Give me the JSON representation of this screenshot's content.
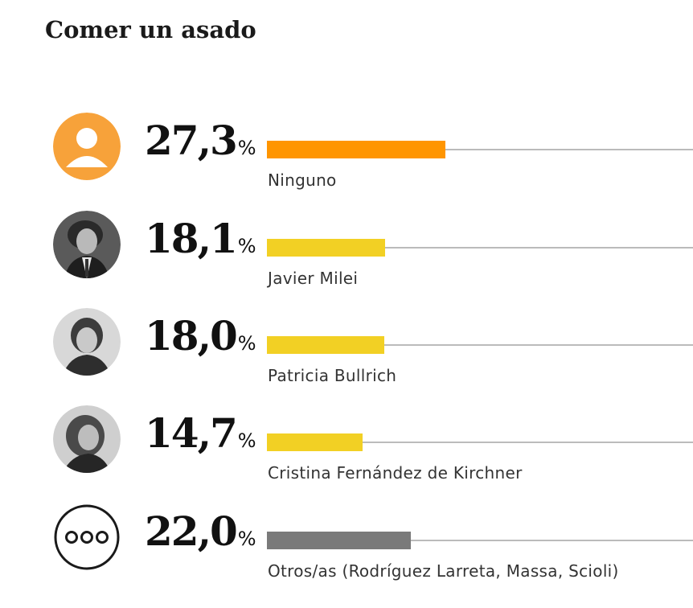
{
  "title": "Comer un asado",
  "colors": {
    "ninguno": "#ff9500",
    "candidate": "#f2d024",
    "otros": "#7a7a7a",
    "track": "#bbbbbb"
  },
  "chart_data": {
    "type": "bar",
    "title": "Comer un asado",
    "unit": "%",
    "xlim": [
      0,
      100
    ],
    "categories": [
      "Ninguno",
      "Javier Milei",
      "Patricia Bullrich",
      "Cristina Fernández de Kirchner",
      "Otros/as (Rodríguez Larreta, Massa, Scioli)"
    ],
    "values": [
      27.3,
      18.1,
      18.0,
      14.7,
      22.0
    ],
    "value_labels": [
      "27,3",
      "18,1",
      "18,0",
      "14,7",
      "22,0"
    ],
    "bar_colors": [
      "#ff9500",
      "#f2d024",
      "#f2d024",
      "#f2d024",
      "#7a7a7a"
    ],
    "icons": [
      "person-placeholder-icon",
      "javier-milei-photo",
      "patricia-bullrich-photo",
      "cristina-kirchner-photo",
      "more-dots-icon"
    ],
    "percent_sign": "%"
  }
}
